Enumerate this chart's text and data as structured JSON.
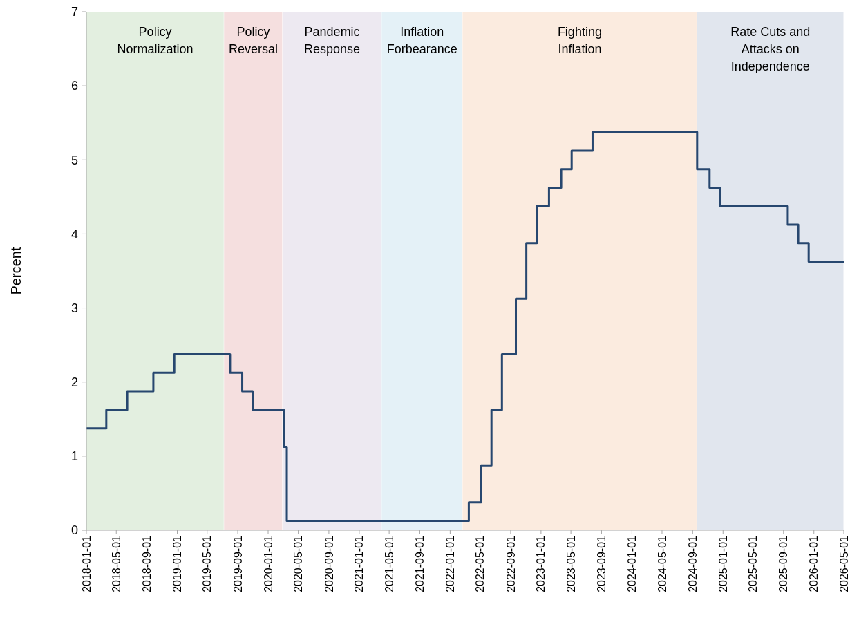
{
  "chart_data": {
    "type": "step",
    "ylabel": "Percent",
    "xlim": [
      "2018-01-01",
      "2026-05-01"
    ],
    "xticks": [
      "2018-01-01",
      "2018-05-01",
      "2018-09-01",
      "2019-01-01",
      "2019-05-01",
      "2019-09-01",
      "2020-01-01",
      "2020-05-01",
      "2020-09-01",
      "2021-01-01",
      "2021-05-01",
      "2021-09-01",
      "2022-01-01",
      "2022-05-01",
      "2022-09-01",
      "2023-01-01",
      "2023-05-01",
      "2023-09-01",
      "2024-01-01",
      "2024-05-01",
      "2024-09-01",
      "2025-01-01",
      "2025-05-01",
      "2025-09-01",
      "2026-01-01",
      "2026-05-01"
    ],
    "ylim": [
      0,
      7
    ],
    "yticks": [
      0,
      1,
      2,
      3,
      4,
      5,
      6,
      7
    ],
    "grid": false,
    "bands": [
      {
        "axis": "x",
        "from": "2018-01-01",
        "to": "2019-07-08",
        "label": "Policy\nNormalization",
        "color": "#e3efe0"
      },
      {
        "axis": "x",
        "from": "2019-07-08",
        "to": "2020-02-28",
        "label": "Policy\nReversal",
        "color": "#f5dfdf"
      },
      {
        "axis": "x",
        "from": "2020-02-28",
        "to": "2021-04-01",
        "label": "Pandemic\nResponse",
        "color": "#ede9f1"
      },
      {
        "axis": "x",
        "from": "2021-04-01",
        "to": "2022-02-20",
        "label": "Inflation\nForbearance",
        "color": "#e4f1f7"
      },
      {
        "axis": "x",
        "from": "2022-02-20",
        "to": "2024-09-18",
        "label": "Fighting\nInflation",
        "color": "#fbebdf"
      },
      {
        "axis": "x",
        "from": "2024-09-18",
        "to": "2026-05-01",
        "label": "Rate Cuts and\nAttacks on\nIndependence",
        "color": "#e1e6ee"
      }
    ],
    "series": [
      {
        "color": "#27476f",
        "x": [
          "2018-01-01",
          "2018-03-22",
          "2018-06-14",
          "2018-09-27",
          "2018-12-20",
          "2019-08-01",
          "2019-09-19",
          "2019-10-31",
          "2020-03-04",
          "2020-03-16",
          "2022-03-17",
          "2022-05-05",
          "2022-06-16",
          "2022-07-28",
          "2022-09-22",
          "2022-11-03",
          "2022-12-15",
          "2023-02-02",
          "2023-03-23",
          "2023-05-04",
          "2023-07-27",
          "2024-09-19",
          "2024-11-08",
          "2024-12-19",
          "2025-09-18",
          "2025-10-30",
          "2025-12-11",
          "2026-05-01"
        ],
        "values": [
          1.375,
          1.625,
          1.875,
          2.125,
          2.375,
          2.125,
          1.875,
          1.625,
          1.125,
          0.125,
          0.375,
          0.875,
          1.625,
          2.375,
          3.125,
          3.875,
          4.375,
          4.625,
          4.875,
          5.125,
          5.375,
          4.875,
          4.625,
          4.375,
          4.125,
          3.875,
          3.625,
          3.625
        ]
      }
    ]
  }
}
